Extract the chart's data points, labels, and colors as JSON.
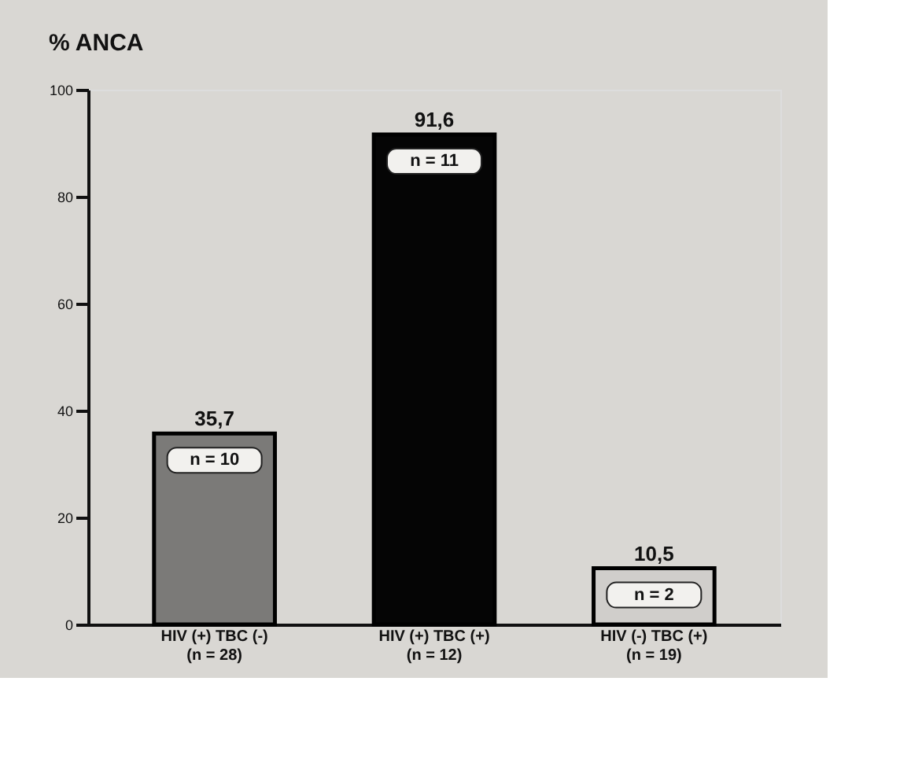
{
  "chart_data": {
    "type": "bar",
    "ylabel": "% ANCA",
    "categories": [
      "HIV (+) TBC (-)\n(n = 28)",
      "HIV (+) TBC (+)\n(n = 12)",
      "HIV (-) TBC (+)\n(n = 19)"
    ],
    "values": [
      35.7,
      91.6,
      10.5
    ],
    "colors": [
      "#7b7a78",
      "#050505",
      "#d0cecb"
    ],
    "value_labels": [
      "35,7",
      "91,6",
      "10,5"
    ],
    "annotations": [
      "n = 10",
      "n = 11",
      "n = 2"
    ],
    "ylim": [
      0,
      100
    ],
    "yticks": [
      0,
      20,
      40,
      60,
      80,
      100
    ],
    "grid": false
  }
}
